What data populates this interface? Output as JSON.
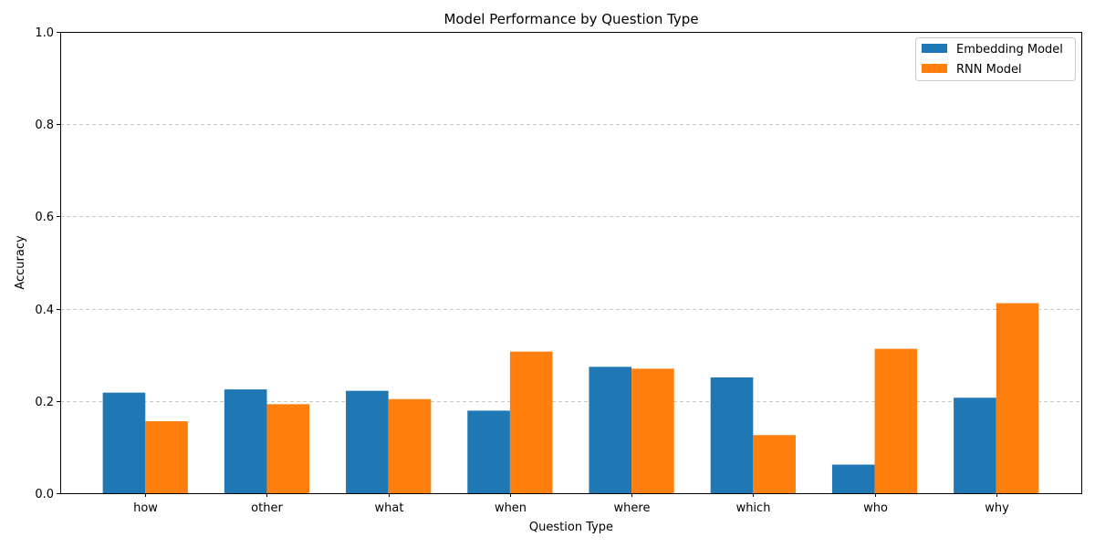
{
  "chart_data": {
    "type": "bar",
    "title": "Model Performance by Question Type",
    "xlabel": "Question Type",
    "ylabel": "Accuracy",
    "ylim": [
      0,
      1.0
    ],
    "yticks": [
      "0.0",
      "0.2",
      "0.4",
      "0.6",
      "0.8",
      "1.0"
    ],
    "categories": [
      "how",
      "other",
      "what",
      "when",
      "where",
      "which",
      "who",
      "why"
    ],
    "series": [
      {
        "name": "Embedding Model",
        "color": "#1f77b4",
        "values": [
          0.218,
          0.225,
          0.222,
          0.179,
          0.274,
          0.251,
          0.062,
          0.207
        ]
      },
      {
        "name": "RNN Model",
        "color": "#ff7f0e",
        "values": [
          0.156,
          0.193,
          0.204,
          0.307,
          0.27,
          0.126,
          0.313,
          0.412
        ]
      }
    ],
    "grid": "y-dashed",
    "legend_position": "top-right"
  }
}
